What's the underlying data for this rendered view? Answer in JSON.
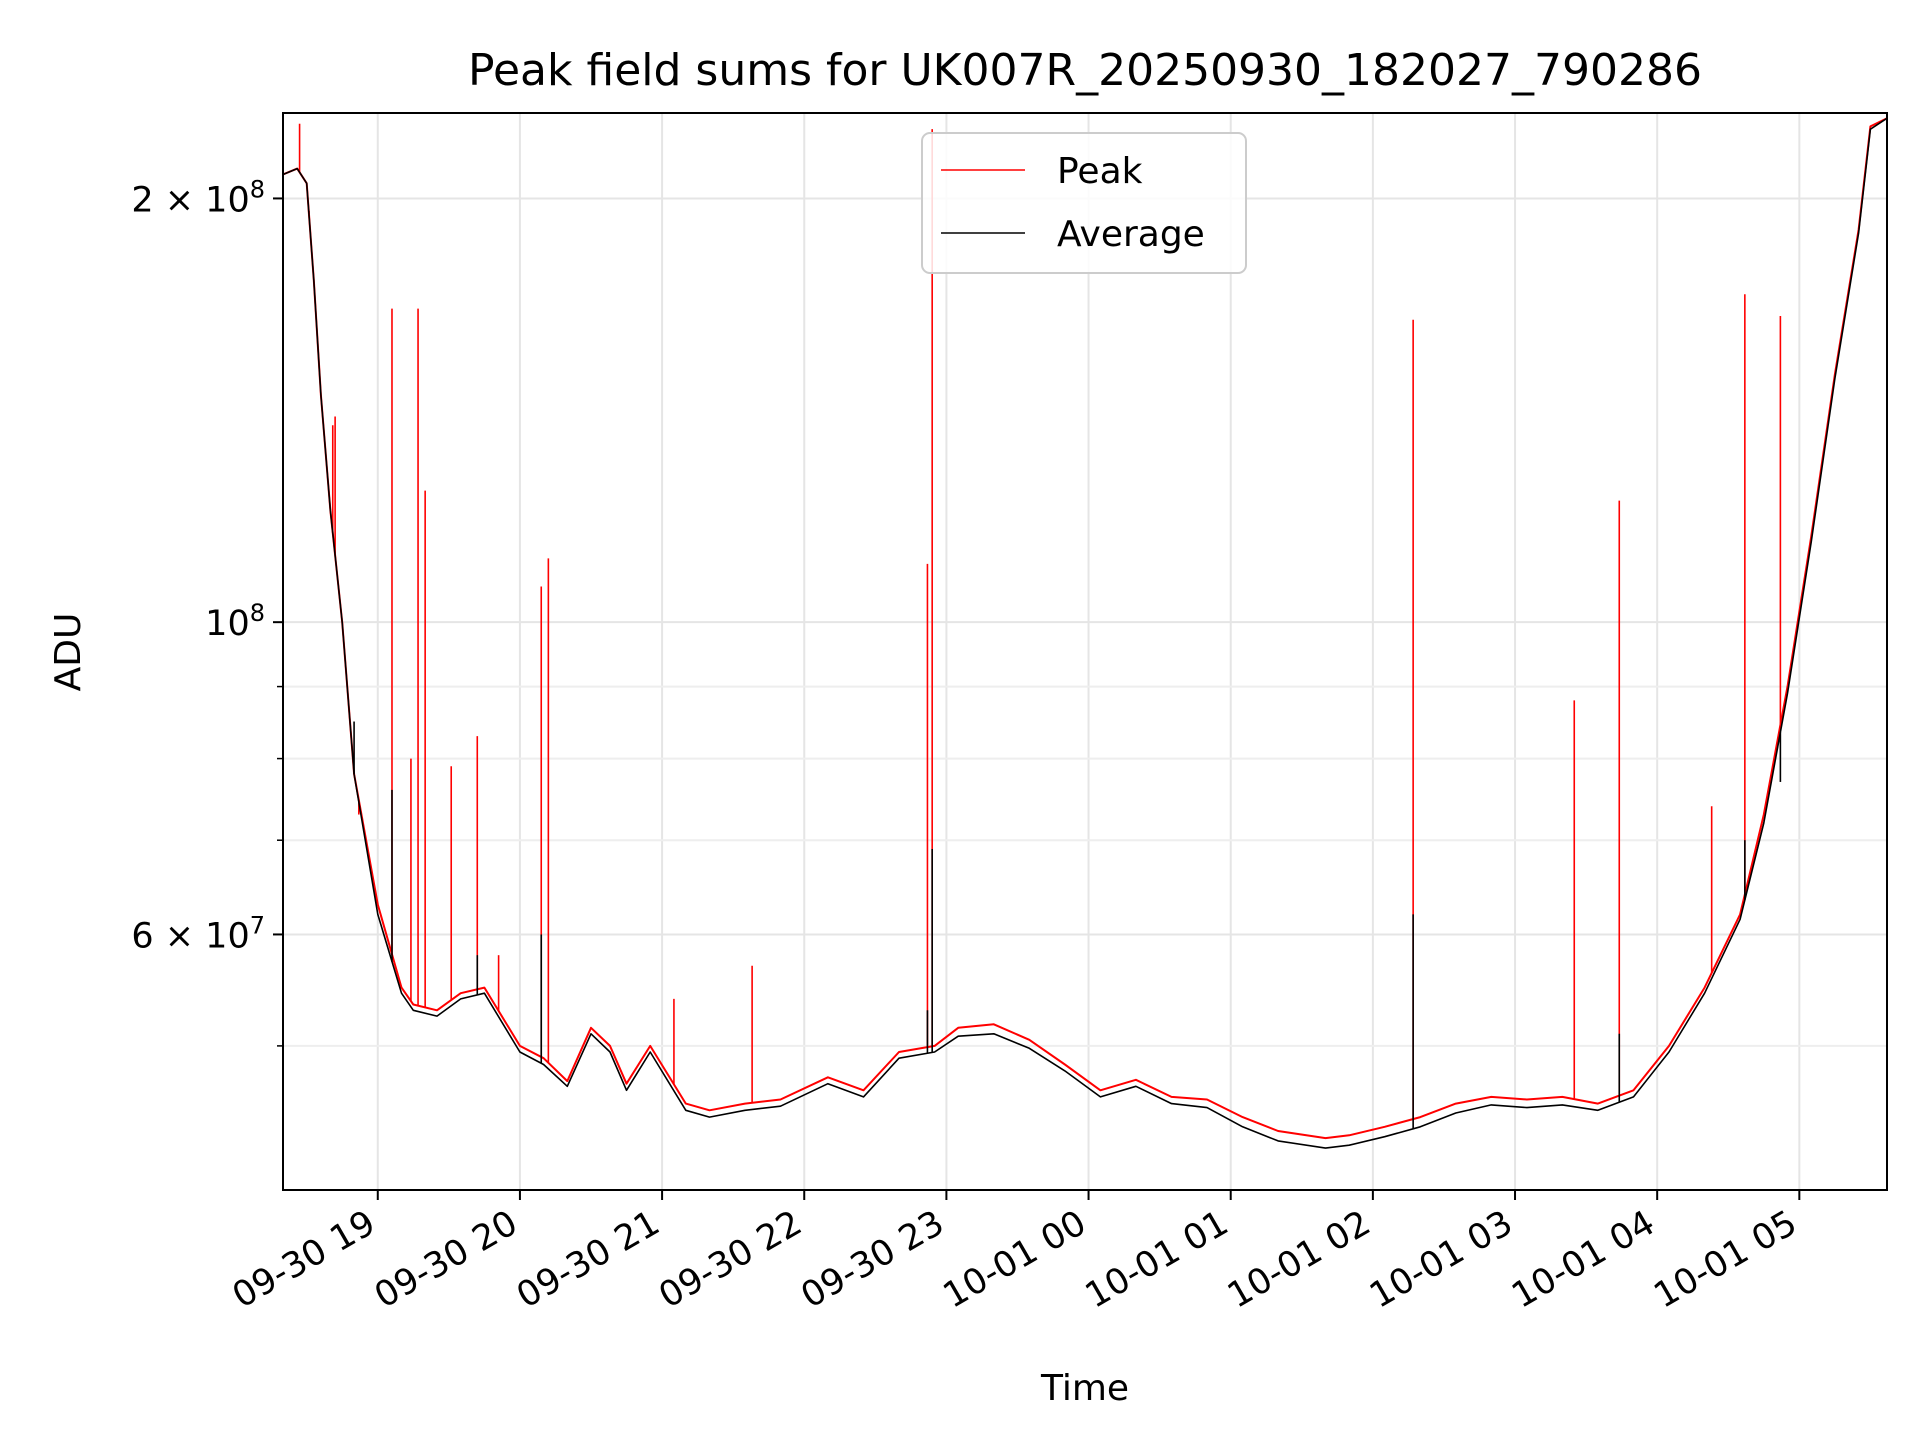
{
  "chart_data": {
    "type": "line",
    "title": "Peak field sums for UK007R_20250930_182027_790286",
    "xlabel": "Time",
    "ylabel": "ADU",
    "yscale": "log",
    "grid": true,
    "legend_position": "upper center",
    "xlim": [
      "2025-09-30 18:20",
      "2025-10-01 05:37"
    ],
    "ylim": [
      39500000,
      230000000
    ],
    "x_ticks": [
      "09-30 19",
      "09-30 20",
      "09-30 21",
      "09-30 22",
      "09-30 23",
      "10-01 00",
      "10-01 01",
      "10-01 02",
      "10-01 03",
      "10-01 04",
      "10-01 05"
    ],
    "y_tick_labels": [
      "2 × 10^8",
      "10^8",
      "6 × 10^7"
    ],
    "y_tick_values": [
      200000000,
      100000000,
      60000000
    ],
    "y_minor_ticks": [
      50000000,
      70000000,
      80000000,
      90000000
    ],
    "series": [
      {
        "name": "Peak",
        "color": "#ff0000",
        "x": [
          "2025-09-30 18:20",
          "2025-09-30 18:26",
          "2025-09-30 18:30",
          "2025-09-30 18:33",
          "2025-09-30 18:36",
          "2025-09-30 18:40",
          "2025-09-30 18:45",
          "2025-09-30 18:50",
          "2025-09-30 19:00",
          "2025-09-30 19:10",
          "2025-09-30 19:15",
          "2025-09-30 19:25",
          "2025-09-30 19:35",
          "2025-09-30 19:45",
          "2025-09-30 20:00",
          "2025-09-30 20:10",
          "2025-09-30 20:20",
          "2025-09-30 20:30",
          "2025-09-30 20:38",
          "2025-09-30 20:45",
          "2025-09-30 20:55",
          "2025-09-30 21:10",
          "2025-09-30 21:20",
          "2025-09-30 21:35",
          "2025-09-30 21:50",
          "2025-09-30 22:10",
          "2025-09-30 22:25",
          "2025-09-30 22:40",
          "2025-09-30 22:55",
          "2025-09-30 23:05",
          "2025-09-30 23:20",
          "2025-09-30 23:35",
          "2025-09-30 23:50",
          "2025-10-01 00:05",
          "2025-10-01 00:20",
          "2025-10-01 00:35",
          "2025-10-01 00:50",
          "2025-10-01 01:05",
          "2025-10-01 01:20",
          "2025-10-01 01:40",
          "2025-10-01 01:50",
          "2025-10-01 02:05",
          "2025-10-01 02:20",
          "2025-10-01 02:35",
          "2025-10-01 02:50",
          "2025-10-01 03:05",
          "2025-10-01 03:20",
          "2025-10-01 03:35",
          "2025-10-01 03:50",
          "2025-10-01 04:05",
          "2025-10-01 04:20",
          "2025-10-01 04:35",
          "2025-10-01 04:45",
          "2025-10-01 04:55",
          "2025-10-01 05:05",
          "2025-10-01 05:15",
          "2025-10-01 05:25",
          "2025-10-01 05:30",
          "2025-10-01 05:37"
        ],
        "y": [
          208000000,
          210000000,
          205000000,
          175000000,
          145000000,
          120000000,
          100000000,
          78000000,
          63000000,
          55000000,
          53500000,
          53000000,
          54500000,
          55000000,
          50000000,
          49000000,
          47200000,
          51500000,
          50000000,
          47000000,
          50000000,
          45500000,
          45000000,
          45500000,
          45800000,
          47500000,
          46500000,
          49500000,
          50000000,
          51500000,
          51800000,
          50500000,
          48500000,
          46500000,
          47300000,
          46000000,
          45800000,
          44500000,
          43500000,
          43000000,
          43200000,
          43800000,
          44500000,
          45500000,
          46000000,
          45800000,
          46000000,
          45500000,
          46500000,
          50000000,
          55000000,
          62000000,
          73000000,
          90000000,
          115000000,
          150000000,
          190000000,
          225000000,
          228000000
        ],
        "spikes": [
          {
            "x": "2025-09-30 18:27",
            "y": 226000000
          },
          {
            "x": "2025-09-30 18:31",
            "y": 196000000
          },
          {
            "x": "2025-09-30 18:41",
            "y": 138000000
          },
          {
            "x": "2025-09-30 18:42",
            "y": 140000000
          },
          {
            "x": "2025-09-30 18:52",
            "y": 73000000
          },
          {
            "x": "2025-09-30 19:06",
            "y": 167000000
          },
          {
            "x": "2025-09-30 19:14",
            "y": 80000000
          },
          {
            "x": "2025-09-30 19:17",
            "y": 167000000
          },
          {
            "x": "2025-09-30 19:20",
            "y": 124000000
          },
          {
            "x": "2025-09-30 19:31",
            "y": 79000000
          },
          {
            "x": "2025-09-30 19:42",
            "y": 83000000
          },
          {
            "x": "2025-09-30 19:51",
            "y": 58000000
          },
          {
            "x": "2025-09-30 20:09",
            "y": 106000000
          },
          {
            "x": "2025-09-30 20:12",
            "y": 111000000
          },
          {
            "x": "2025-09-30 21:05",
            "y": 54000000
          },
          {
            "x": "2025-09-30 21:38",
            "y": 57000000
          },
          {
            "x": "2025-09-30 22:52",
            "y": 110000000
          },
          {
            "x": "2025-09-30 22:54",
            "y": 224000000
          },
          {
            "x": "2025-10-01 02:17",
            "y": 164000000
          },
          {
            "x": "2025-10-01 03:25",
            "y": 88000000
          },
          {
            "x": "2025-10-01 03:44",
            "y": 122000000
          },
          {
            "x": "2025-10-01 04:23",
            "y": 74000000
          },
          {
            "x": "2025-10-01 04:37",
            "y": 171000000
          },
          {
            "x": "2025-10-01 04:52",
            "y": 165000000
          }
        ]
      },
      {
        "name": "Average",
        "color": "#000000",
        "x": [
          "2025-09-30 18:20",
          "2025-09-30 18:26",
          "2025-09-30 18:30",
          "2025-09-30 18:33",
          "2025-09-30 18:36",
          "2025-09-30 18:40",
          "2025-09-30 18:45",
          "2025-09-30 18:50",
          "2025-09-30 19:00",
          "2025-09-30 19:10",
          "2025-09-30 19:15",
          "2025-09-30 19:25",
          "2025-09-30 19:35",
          "2025-09-30 19:45",
          "2025-09-30 20:00",
          "2025-09-30 20:10",
          "2025-09-30 20:20",
          "2025-09-30 20:30",
          "2025-09-30 20:38",
          "2025-09-30 20:45",
          "2025-09-30 20:55",
          "2025-09-30 21:10",
          "2025-09-30 21:20",
          "2025-09-30 21:35",
          "2025-09-30 21:50",
          "2025-09-30 22:10",
          "2025-09-30 22:25",
          "2025-09-30 22:40",
          "2025-09-30 22:55",
          "2025-09-30 23:05",
          "2025-09-30 23:20",
          "2025-09-30 23:35",
          "2025-09-30 23:50",
          "2025-10-01 00:05",
          "2025-10-01 00:20",
          "2025-10-01 00:35",
          "2025-10-01 00:50",
          "2025-10-01 01:05",
          "2025-10-01 01:20",
          "2025-10-01 01:40",
          "2025-10-01 01:50",
          "2025-10-01 02:05",
          "2025-10-01 02:20",
          "2025-10-01 02:35",
          "2025-10-01 02:50",
          "2025-10-01 03:05",
          "2025-10-01 03:20",
          "2025-10-01 03:35",
          "2025-10-01 03:50",
          "2025-10-01 04:05",
          "2025-10-01 04:20",
          "2025-10-01 04:35",
          "2025-10-01 04:45",
          "2025-10-01 04:55",
          "2025-10-01 05:05",
          "2025-10-01 05:15",
          "2025-10-01 05:25",
          "2025-10-01 05:30",
          "2025-10-01 05:37"
        ],
        "y": [
          208000000,
          210000000,
          205000000,
          175000000,
          145000000,
          120000000,
          100000000,
          78000000,
          62000000,
          54500000,
          53000000,
          52500000,
          54000000,
          54500000,
          49500000,
          48500000,
          46800000,
          51000000,
          49500000,
          46500000,
          49500000,
          45000000,
          44500000,
          45000000,
          45300000,
          47000000,
          46000000,
          49000000,
          49500000,
          50800000,
          51000000,
          49800000,
          48000000,
          46000000,
          46800000,
          45500000,
          45200000,
          43800000,
          42800000,
          42300000,
          42500000,
          43100000,
          43800000,
          44800000,
          45400000,
          45200000,
          45400000,
          45000000,
          46000000,
          49500000,
          54500000,
          61500000,
          72000000,
          89000000,
          114000000,
          149000000,
          189000000,
          224000000,
          228000000
        ],
        "spikes": [
          {
            "x": "2025-09-30 18:50",
            "y": 85000000
          },
          {
            "x": "2025-09-30 19:06",
            "y": 76000000
          },
          {
            "x": "2025-09-30 19:42",
            "y": 58000000
          },
          {
            "x": "2025-09-30 20:09",
            "y": 60000000
          },
          {
            "x": "2025-09-30 22:52",
            "y": 53000000
          },
          {
            "x": "2025-09-30 22:54",
            "y": 69000000
          },
          {
            "x": "2025-10-01 02:17",
            "y": 62000000
          },
          {
            "x": "2025-10-01 03:44",
            "y": 51000000
          },
          {
            "x": "2025-10-01 04:37",
            "y": 70000000
          },
          {
            "x": "2025-10-01 04:52",
            "y": 77000000
          }
        ]
      }
    ]
  }
}
